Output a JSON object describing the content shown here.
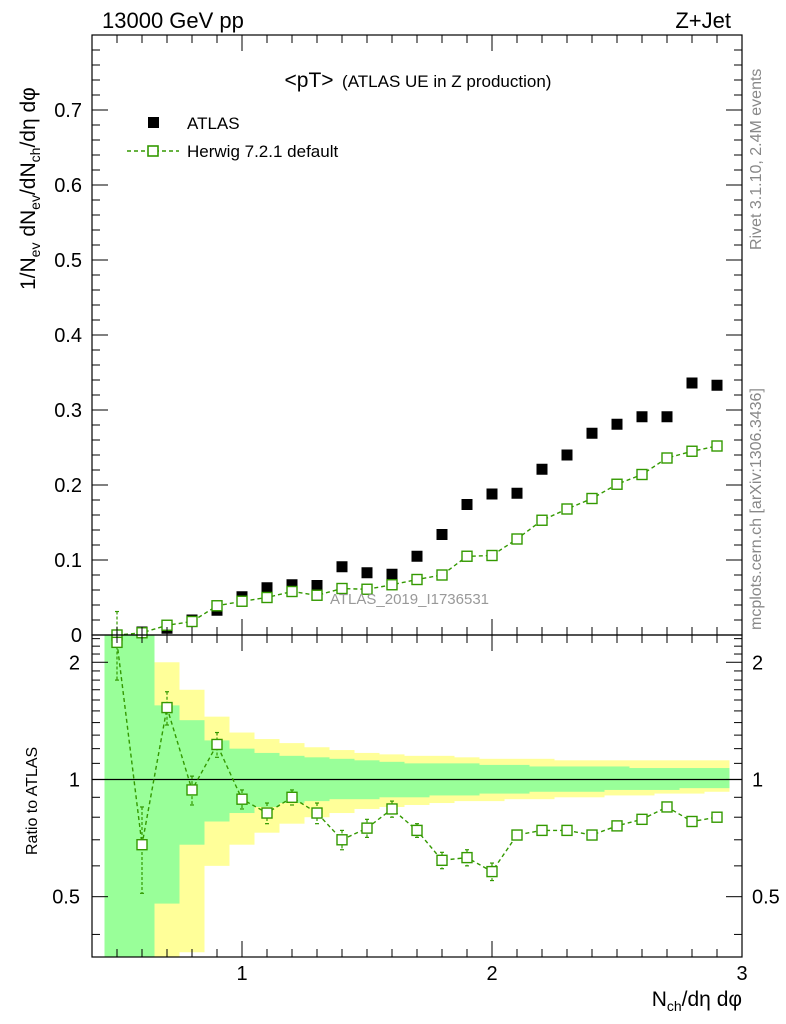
{
  "header": {
    "left": "13000 GeV pp",
    "right": "Z+Jet"
  },
  "side_labels": {
    "rivet": "Rivet 3.1.10,  2.4M events",
    "mcplots": "mcplots.cern.ch [arXiv:1306.3436]"
  },
  "watermark": "ATLAS_2019_I1736531",
  "colors": {
    "atlas": "#000000",
    "herwig": "#339900",
    "band_inner": "#99ff99",
    "band_outer": "#ffff99"
  },
  "chart_data": [
    {
      "type": "scatter",
      "title": "<pT> (ATLAS UE in Z production)",
      "title_main": "<pT>",
      "title_sub": "(ATLAS UE in Z production)",
      "ylabel": "1/N_ev dN_ev/dN_ch/dη dφ",
      "xlabel": "N_ch/dη dφ",
      "xlim": [
        0.4,
        3.0
      ],
      "ylim": [
        0,
        0.8
      ],
      "yticks": [
        "0",
        "0.1",
        "0.2",
        "0.3",
        "0.4",
        "0.5",
        "0.6",
        "0.7"
      ],
      "x": [
        0.5,
        0.6,
        0.7,
        0.8,
        0.9,
        1.0,
        1.1,
        1.2,
        1.3,
        1.4,
        1.5,
        1.6,
        1.7,
        1.8,
        1.9,
        2.0,
        2.1,
        2.2,
        2.3,
        2.4,
        2.5,
        2.6,
        2.7,
        2.8,
        2.9
      ],
      "series": [
        {
          "name": "ATLAS",
          "marker": "filled-square",
          "values": [
            0.0,
            0.004,
            0.009,
            0.02,
            0.033,
            0.051,
            0.063,
            0.067,
            0.066,
            0.091,
            0.083,
            0.081,
            0.105,
            0.134,
            0.174,
            0.188,
            0.189,
            0.221,
            0.24,
            0.269,
            0.281,
            0.291,
            0.291,
            0.336,
            0.333
          ]
        },
        {
          "name": "Herwig 7.2.1 default",
          "marker": "open-square-dashed-line",
          "values": [
            0.0,
            0.003,
            0.013,
            0.018,
            0.039,
            0.045,
            0.05,
            0.058,
            0.053,
            0.062,
            0.061,
            0.067,
            0.074,
            0.08,
            0.105,
            0.106,
            0.128,
            0.153,
            0.168,
            0.182,
            0.201,
            0.214,
            0.236,
            0.245,
            0.252
          ]
        }
      ],
      "legend": [
        "ATLAS",
        "Herwig 7.2.1 default"
      ]
    },
    {
      "type": "line",
      "ylabel": "Ratio to ATLAS",
      "xlabel": "N_ch/dη dφ",
      "xlim": [
        0.4,
        3.0
      ],
      "ylim": [
        0.35,
        2.35
      ],
      "yscale": "log",
      "yticks": [
        "0.5",
        "1",
        "2"
      ],
      "xticks": [
        "1",
        "2",
        "3"
      ],
      "x": [
        0.5,
        0.6,
        0.7,
        0.8,
        0.9,
        1.0,
        1.1,
        1.2,
        1.3,
        1.4,
        1.5,
        1.6,
        1.7,
        1.8,
        1.9,
        2.0,
        2.1,
        2.2,
        2.3,
        2.4,
        2.5,
        2.6,
        2.7,
        2.8,
        2.9
      ],
      "ratio": [
        2.25,
        0.68,
        1.53,
        0.94,
        1.23,
        0.89,
        0.82,
        0.9,
        0.82,
        0.7,
        0.75,
        0.84,
        0.74,
        0.62,
        0.63,
        0.58,
        0.72,
        0.74,
        0.74,
        0.72,
        0.76,
        0.79,
        0.85,
        0.78,
        0.8
      ],
      "ratio_err": [
        0.45,
        0.17,
        0.15,
        0.08,
        0.09,
        0.05,
        0.05,
        0.04,
        0.05,
        0.04,
        0.04,
        0.04,
        0.03,
        0.03,
        0.03,
        0.03,
        0.02,
        0.02,
        0.02,
        0.02,
        0.02,
        0.02,
        0.02,
        0.02,
        0.02
      ],
      "band_inner": [
        [
          0.3,
          2.5
        ],
        [
          0.3,
          2.5
        ],
        [
          0.48,
          1.55
        ],
        [
          0.68,
          1.42
        ],
        [
          0.78,
          1.26
        ],
        [
          0.82,
          1.2
        ],
        [
          0.85,
          1.17
        ],
        [
          0.87,
          1.15
        ],
        [
          0.88,
          1.14
        ],
        [
          0.89,
          1.13
        ],
        [
          0.89,
          1.12
        ],
        [
          0.9,
          1.11
        ],
        [
          0.9,
          1.1
        ],
        [
          0.91,
          1.1
        ],
        [
          0.91,
          1.1
        ],
        [
          0.92,
          1.09
        ],
        [
          0.92,
          1.09
        ],
        [
          0.93,
          1.08
        ],
        [
          0.93,
          1.08
        ],
        [
          0.93,
          1.08
        ],
        [
          0.94,
          1.08
        ],
        [
          0.94,
          1.07
        ],
        [
          0.94,
          1.07
        ],
        [
          0.95,
          1.07
        ],
        [
          0.95,
          1.07
        ]
      ],
      "band_outer": [
        [
          0.3,
          2.5
        ],
        [
          0.3,
          1.95
        ],
        [
          0.3,
          2.0
        ],
        [
          0.36,
          1.7
        ],
        [
          0.6,
          1.45
        ],
        [
          0.68,
          1.32
        ],
        [
          0.73,
          1.27
        ],
        [
          0.77,
          1.24
        ],
        [
          0.8,
          1.21
        ],
        [
          0.82,
          1.19
        ],
        [
          0.84,
          1.17
        ],
        [
          0.85,
          1.16
        ],
        [
          0.86,
          1.15
        ],
        [
          0.87,
          1.15
        ],
        [
          0.88,
          1.14
        ],
        [
          0.88,
          1.13
        ],
        [
          0.89,
          1.13
        ],
        [
          0.89,
          1.13
        ],
        [
          0.9,
          1.12
        ],
        [
          0.9,
          1.12
        ],
        [
          0.91,
          1.12
        ],
        [
          0.91,
          1.12
        ],
        [
          0.92,
          1.12
        ],
        [
          0.92,
          1.12
        ],
        [
          0.93,
          1.12
        ]
      ]
    }
  ]
}
